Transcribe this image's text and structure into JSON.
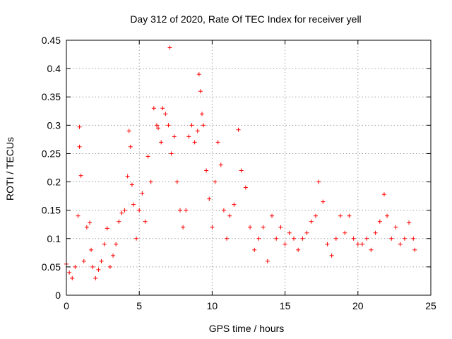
{
  "chart_data": {
    "type": "scatter",
    "title": "Day 312 of 2020, Rate Of TEC Index for receiver yell",
    "xlabel": "GPS time / hours",
    "ylabel": "ROTI / TECUs",
    "xlim": [
      0,
      25
    ],
    "ylim": [
      0,
      0.45
    ],
    "xticks": [
      0,
      5,
      10,
      15,
      20,
      25
    ],
    "yticks": [
      0,
      0.05,
      0.1,
      0.15,
      0.2,
      0.25,
      0.3,
      0.35,
      0.4,
      0.45
    ],
    "ytick_labels": [
      "0",
      "0.05",
      "0.1",
      "0.15",
      "0.2",
      "0.25",
      "0.3",
      "0.35",
      "0.4",
      "0.45"
    ],
    "xtick_labels": [
      "0",
      "5",
      "10",
      "15",
      "20",
      "25"
    ],
    "grid": true,
    "marker": "+",
    "color": "#ff0000",
    "series": [
      {
        "x": [
          0.0,
          0.2,
          0.4,
          0.6,
          0.8,
          0.9,
          0.9,
          1.0,
          1.2,
          1.4,
          1.6,
          1.7,
          1.8,
          2.0,
          2.2,
          2.4,
          2.6,
          2.8,
          3.0,
          3.2,
          3.4,
          3.6,
          3.8,
          4.0,
          4.2,
          4.3,
          4.4,
          4.5,
          4.6,
          4.8,
          5.0,
          5.2,
          5.4,
          5.6,
          5.8,
          6.0,
          6.2,
          6.3,
          6.5,
          6.6,
          6.8,
          7.0,
          7.1,
          7.2,
          7.4,
          7.6,
          7.8,
          8.0,
          8.2,
          8.4,
          8.6,
          8.8,
          9.0,
          9.1,
          9.2,
          9.3,
          9.4,
          9.6,
          9.8,
          10.0,
          10.2,
          10.4,
          10.6,
          10.8,
          11.0,
          11.2,
          11.5,
          11.8,
          12.0,
          12.3,
          12.6,
          12.9,
          13.2,
          13.5,
          13.8,
          14.1,
          14.4,
          14.7,
          15.0,
          15.3,
          15.6,
          15.9,
          16.2,
          16.5,
          16.8,
          17.1,
          17.3,
          17.6,
          17.9,
          18.2,
          18.5,
          18.8,
          19.1,
          19.4,
          19.7,
          20.0,
          20.3,
          20.6,
          20.9,
          21.2,
          21.5,
          21.8,
          22.0,
          22.3,
          22.6,
          22.9,
          23.2,
          23.5,
          23.8,
          23.9
        ],
        "y": [
          0.055,
          0.04,
          0.03,
          0.05,
          0.14,
          0.297,
          0.262,
          0.211,
          0.06,
          0.12,
          0.128,
          0.08,
          0.05,
          0.03,
          0.045,
          0.06,
          0.09,
          0.118,
          0.05,
          0.07,
          0.09,
          0.13,
          0.145,
          0.15,
          0.21,
          0.29,
          0.262,
          0.195,
          0.16,
          0.1,
          0.15,
          0.18,
          0.13,
          0.245,
          0.2,
          0.33,
          0.3,
          0.295,
          0.27,
          0.33,
          0.32,
          0.3,
          0.437,
          0.25,
          0.28,
          0.2,
          0.15,
          0.12,
          0.15,
          0.28,
          0.3,
          0.27,
          0.29,
          0.39,
          0.36,
          0.32,
          0.3,
          0.22,
          0.17,
          0.12,
          0.2,
          0.27,
          0.23,
          0.15,
          0.1,
          0.14,
          0.16,
          0.292,
          0.22,
          0.19,
          0.12,
          0.08,
          0.1,
          0.12,
          0.06,
          0.14,
          0.1,
          0.12,
          0.09,
          0.11,
          0.1,
          0.08,
          0.1,
          0.11,
          0.13,
          0.14,
          0.2,
          0.165,
          0.09,
          0.07,
          0.1,
          0.14,
          0.11,
          0.14,
          0.1,
          0.09,
          0.09,
          0.1,
          0.08,
          0.11,
          0.13,
          0.178,
          0.14,
          0.1,
          0.12,
          0.09,
          0.1,
          0.128,
          0.1,
          0.08
        ]
      }
    ]
  }
}
